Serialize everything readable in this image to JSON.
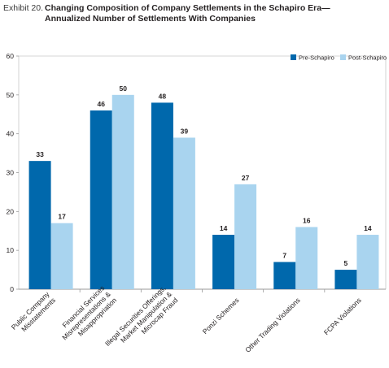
{
  "header": {
    "exhibit": "Exhibit 20.",
    "title": "Changing Composition of Company Settlements in the Schapiro Era—\nAnnualized Number of Settlements With Companies"
  },
  "chart_data": {
    "type": "bar",
    "title": "Changing Composition of Company Settlements in the Schapiro Era—Annualized Number of Settlements With Companies",
    "xlabel": "",
    "ylabel": "",
    "ylim": [
      0,
      60
    ],
    "yticks": [
      0,
      10,
      20,
      30,
      40,
      50,
      60
    ],
    "grid": false,
    "legend_position": "top-right",
    "categories": [
      [
        "Public Company",
        "Misstatements"
      ],
      [
        "Financial Services",
        "Misrepresentations &",
        "Misappropriation"
      ],
      [
        "Illegal Securities Offerings,",
        "Market Manipulation &",
        "Microcap Fraud"
      ],
      [
        "Ponzi Schemes"
      ],
      [
        "Other Trading Violations"
      ],
      [
        "FCPA Violations"
      ]
    ],
    "series": [
      {
        "name": "Pre-Schapiro",
        "color": "#0068ac",
        "values": [
          33,
          46,
          48,
          14,
          7,
          5
        ]
      },
      {
        "name": "Post-Schapiro",
        "color": "#a9d4ef",
        "values": [
          17,
          50,
          39,
          27,
          16,
          14
        ]
      }
    ]
  }
}
